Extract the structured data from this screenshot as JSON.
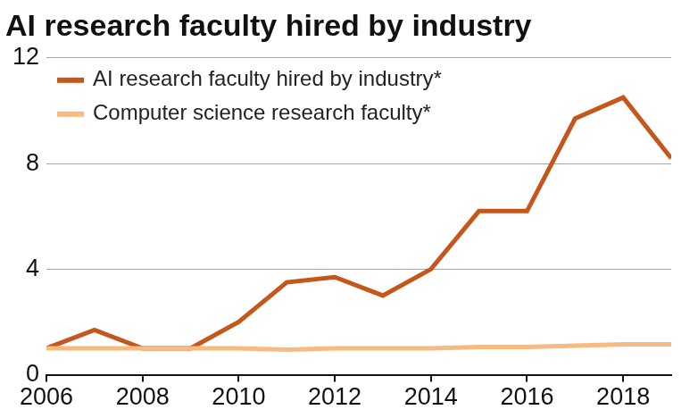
{
  "chart_data": {
    "type": "line",
    "title": "AI research faculty hired by industry",
    "x": [
      2006,
      2007,
      2008,
      2009,
      2010,
      2011,
      2012,
      2013,
      2014,
      2015,
      2016,
      2017,
      2018,
      2019
    ],
    "series": [
      {
        "name": "AI research faculty hired by industry*",
        "color": "#c5571c",
        "values": [
          1,
          1.7,
          1,
          1,
          2,
          3.5,
          3.7,
          3,
          4,
          6.2,
          6.2,
          9.7,
          10.5,
          8.2
        ]
      },
      {
        "name": "Computer science research faculty*",
        "color": "#f7bb82",
        "values": [
          1,
          1,
          1,
          1,
          1,
          0.95,
          1,
          1,
          1,
          1.05,
          1.05,
          1.1,
          1.15,
          1.15
        ]
      }
    ],
    "xlim": [
      2006,
      2019
    ],
    "xticks": [
      2006,
      2008,
      2010,
      2012,
      2014,
      2016,
      2018
    ],
    "ylim": [
      0,
      12
    ],
    "yticks": [
      0,
      4,
      8,
      12
    ],
    "grid": true,
    "legend": "upper left"
  }
}
